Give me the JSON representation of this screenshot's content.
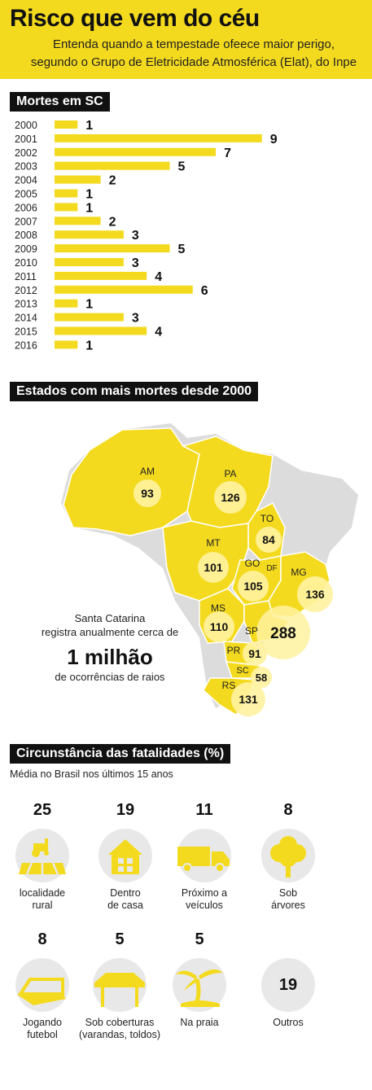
{
  "header": {
    "title": "Risco que vem do céu",
    "subtitle_line1": "Entenda quando a tempestade ofeece maior perigo,",
    "subtitle_line2": "segundo o Grupo de Eletricidade Atmosférica (Elat), do Inpe"
  },
  "section_deaths": {
    "title": "Mortes em SC"
  },
  "chart_data": {
    "type": "bar",
    "orientation": "horizontal",
    "title": "Mortes em SC",
    "categories": [
      "2000",
      "2001",
      "2002",
      "2003",
      "2004",
      "2005",
      "2006",
      "2007",
      "2008",
      "2009",
      "2010",
      "2011",
      "2012",
      "2013",
      "2014",
      "2015",
      "2016"
    ],
    "values": [
      1,
      9,
      7,
      5,
      2,
      1,
      1,
      2,
      3,
      5,
      3,
      4,
      6,
      1,
      3,
      4,
      1
    ],
    "bar_color": "#f4da1e"
  },
  "section_states": {
    "title": "Estados com mais mortes desde 2000"
  },
  "map": {
    "states": [
      {
        "abbr": "AM",
        "value": "93"
      },
      {
        "abbr": "PA",
        "value": "126"
      },
      {
        "abbr": "TO",
        "value": "84"
      },
      {
        "abbr": "MT",
        "value": "101"
      },
      {
        "abbr": "GO",
        "value": "105"
      },
      {
        "abbr": "DF",
        "value": ""
      },
      {
        "abbr": "MG",
        "value": "136"
      },
      {
        "abbr": "MS",
        "value": "110"
      },
      {
        "abbr": "SP",
        "value": "288"
      },
      {
        "abbr": "PR",
        "value": "91"
      },
      {
        "abbr": "SC",
        "value": "58"
      },
      {
        "abbr": "RS",
        "value": "131"
      }
    ],
    "caption_line1": "Santa Catarina",
    "caption_line2": "registra anualmente cerca de",
    "caption_big": "1 milhão",
    "caption_line3": "de ocorrências de raios",
    "highlight_color": "#f4da1e",
    "base_color": "#dcdcdc"
  },
  "section_circ": {
    "title": "Circunstância das fatalidades (%)",
    "subtitle": "Média no Brasil nos últimos 15 anos"
  },
  "circumstances": [
    {
      "value": "25",
      "icon": "tractor-field-icon",
      "label1": "localidade",
      "label2": "rural"
    },
    {
      "value": "19",
      "icon": "house-icon",
      "label1": "Dentro",
      "label2": "de casa"
    },
    {
      "value": "11",
      "icon": "truck-icon",
      "label1": "Próximo a",
      "label2": "veículos"
    },
    {
      "value": "8",
      "icon": "tree-icon",
      "label1": "Sob",
      "label2": "árvores"
    },
    {
      "value": "8",
      "icon": "soccer-goal-icon",
      "label1": "Jogando",
      "label2": "futebol"
    },
    {
      "value": "5",
      "icon": "shelter-icon",
      "label1": "Sob coberturas",
      "label2": "(varandas, toldos)"
    },
    {
      "value": "5",
      "icon": "palm-tree-icon",
      "label1": "Na praia",
      "label2": ""
    },
    {
      "value": "",
      "icon": "",
      "label1": "Outros",
      "label2": "",
      "inner_value": "19"
    }
  ]
}
